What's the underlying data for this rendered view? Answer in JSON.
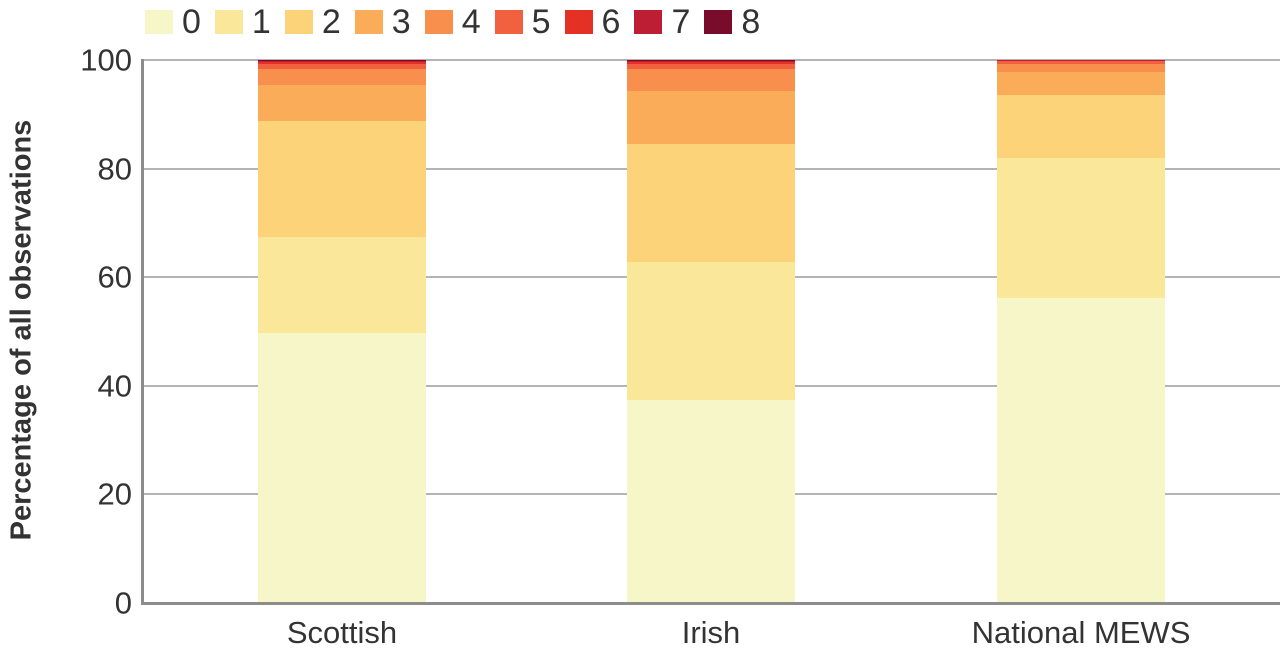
{
  "chart_data": {
    "type": "bar",
    "stacked": true,
    "title": "",
    "xlabel": "",
    "ylabel": "Percentage of all observations",
    "ylim": [
      0,
      100
    ],
    "yticks": [
      0,
      20,
      40,
      60,
      80,
      100
    ],
    "grid": true,
    "legend_position": "top",
    "categories": [
      "Scottish",
      "Irish",
      "National MEWS"
    ],
    "series": [
      {
        "name": "0",
        "color": "#f7f6c8",
        "values": [
          49.7,
          37.4,
          56.2
        ]
      },
      {
        "name": "1",
        "color": "#fae79a",
        "values": [
          17.7,
          25.4,
          25.7
        ]
      },
      {
        "name": "2",
        "color": "#fdd37a",
        "values": [
          21.4,
          21.7,
          11.7
        ]
      },
      {
        "name": "3",
        "color": "#fbac58",
        "values": [
          6.6,
          9.8,
          4.2
        ]
      },
      {
        "name": "4",
        "color": "#f88f4c",
        "values": [
          2.9,
          4.0,
          1.5
        ]
      },
      {
        "name": "5",
        "color": "#f16140",
        "values": [
          1.0,
          1.0,
          0.5
        ]
      },
      {
        "name": "6",
        "color": "#e53026",
        "values": [
          0.4,
          0.4,
          0.1
        ]
      },
      {
        "name": "7",
        "color": "#bd1e33",
        "values": [
          0.2,
          0.2,
          0.05
        ]
      },
      {
        "name": "8",
        "color": "#7a0c2b",
        "values": [
          0.1,
          0.1,
          0.05
        ]
      }
    ]
  },
  "legend": {
    "items": [
      {
        "label": "0",
        "color": "#f7f6c8"
      },
      {
        "label": "1",
        "color": "#fae79a"
      },
      {
        "label": "2",
        "color": "#fdd37a"
      },
      {
        "label": "3",
        "color": "#fbac58"
      },
      {
        "label": "4",
        "color": "#f88f4c"
      },
      {
        "label": "5",
        "color": "#f16140"
      },
      {
        "label": "6",
        "color": "#e53026"
      },
      {
        "label": "7",
        "color": "#bd1e33"
      },
      {
        "label": "8",
        "color": "#7a0c2b"
      }
    ]
  },
  "axes": {
    "y_title": "Percentage of all observations",
    "y_ticks": [
      "0",
      "20",
      "40",
      "60",
      "80",
      "100"
    ],
    "x_labels": [
      "Scottish",
      "Irish",
      "National MEWS"
    ]
  }
}
